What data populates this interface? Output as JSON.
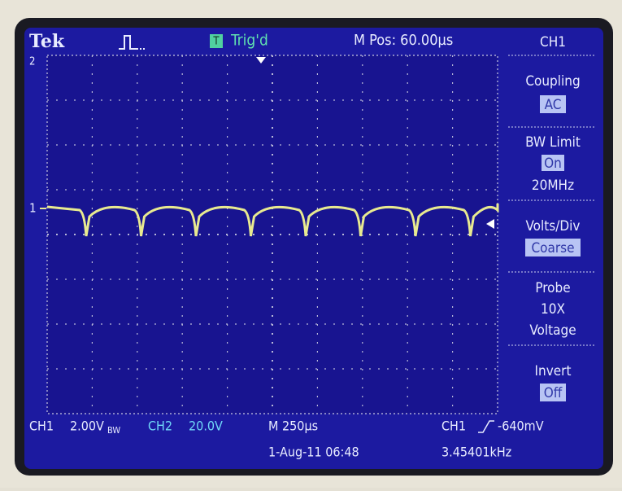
{
  "header": {
    "brand": "Tek",
    "trigger_icon": "T",
    "trigger_status": "Trig'd",
    "position": "M Pos: 60.00µs"
  },
  "markers": {
    "ch2": "2",
    "ch1": "1"
  },
  "side_menu": {
    "title": "CH1",
    "items": [
      {
        "label": "Coupling",
        "value": "AC"
      },
      {
        "label": "BW Limit",
        "value": "On",
        "extra": "20MHz"
      },
      {
        "label": "Volts/Div",
        "value": "Coarse"
      },
      {
        "label": "Probe",
        "lines": [
          "10X",
          "Voltage"
        ]
      },
      {
        "label": "Invert",
        "value": "Off"
      }
    ]
  },
  "status_bar": {
    "ch1_label": "CH1",
    "ch1_scale": "2.00V",
    "ch1_bw": "BW",
    "ch2_label": "CH2",
    "ch2_scale": "20.0V",
    "timebase": "M 250µs",
    "date": "1-Aug-11 06:48",
    "trigger_source": "CH1",
    "trigger_level": "-640mV",
    "frequency": "3.45401kHz"
  }
}
